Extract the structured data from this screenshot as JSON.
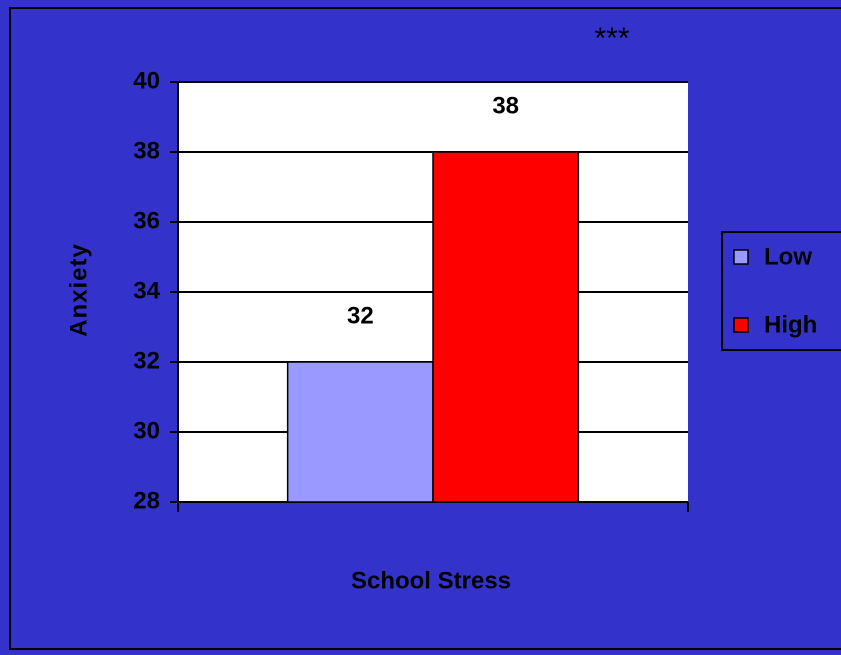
{
  "chart_data": {
    "type": "bar",
    "title": "***",
    "x_label": "School Stress",
    "y_label": "Anxiety",
    "categories": [
      null
    ],
    "series": [
      {
        "name": "Low",
        "color": "#9999ff",
        "values": [
          32
        ]
      },
      {
        "name": "High",
        "color": "#ff0000",
        "values": [
          38
        ]
      }
    ],
    "ylim": [
      28,
      40
    ],
    "yticks": [
      28,
      30,
      32,
      34,
      36,
      38,
      40
    ],
    "grid": true,
    "legend": "right"
  }
}
